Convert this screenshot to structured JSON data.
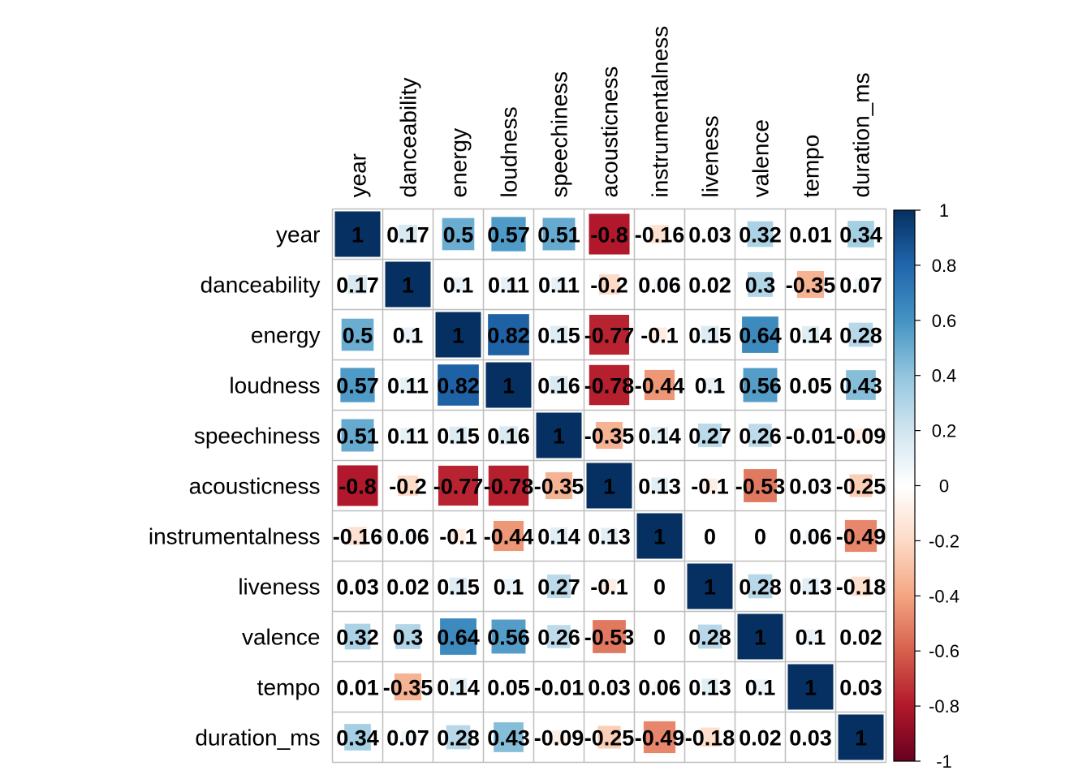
{
  "chart_data": {
    "type": "heatmap",
    "variables": [
      "year",
      "danceability",
      "energy",
      "loudness",
      "speechiness",
      "acousticness",
      "instrumentalness",
      "liveness",
      "valence",
      "tempo",
      "duration_ms"
    ],
    "matrix": [
      [
        1,
        0.17,
        0.5,
        0.57,
        0.51,
        -0.8,
        -0.16,
        0.03,
        0.32,
        0.01,
        0.34
      ],
      [
        0.17,
        1,
        0.1,
        0.11,
        0.11,
        -0.2,
        0.06,
        0.02,
        0.3,
        -0.35,
        0.07
      ],
      [
        0.5,
        0.1,
        1,
        0.82,
        0.15,
        -0.77,
        -0.1,
        0.15,
        0.64,
        0.14,
        0.28
      ],
      [
        0.57,
        0.11,
        0.82,
        1,
        0.16,
        -0.78,
        -0.44,
        0.1,
        0.56,
        0.05,
        0.43
      ],
      [
        0.51,
        0.11,
        0.15,
        0.16,
        1,
        -0.35,
        0.14,
        0.27,
        0.26,
        -0.01,
        -0.09
      ],
      [
        -0.8,
        -0.2,
        -0.77,
        -0.78,
        -0.35,
        1,
        0.13,
        -0.1,
        -0.53,
        0.03,
        -0.25
      ],
      [
        -0.16,
        0.06,
        -0.1,
        -0.44,
        0.14,
        0.13,
        1,
        0,
        0,
        0.06,
        -0.49
      ],
      [
        0.03,
        0.02,
        0.15,
        0.1,
        0.27,
        -0.1,
        0,
        1,
        0.28,
        0.13,
        -0.18
      ],
      [
        0.32,
        0.3,
        0.64,
        0.56,
        0.26,
        -0.53,
        0,
        0.28,
        1,
        0.1,
        0.02
      ],
      [
        0.01,
        -0.35,
        0.14,
        0.05,
        -0.01,
        0.03,
        0.06,
        0.13,
        0.1,
        1,
        0.03
      ],
      [
        0.34,
        0.07,
        0.28,
        0.43,
        -0.09,
        -0.25,
        -0.49,
        -0.18,
        0.02,
        0.03,
        1
      ]
    ],
    "colorbar": {
      "range": [
        -1,
        1
      ],
      "ticks": [
        "1",
        "0.8",
        "0.6",
        "0.4",
        "0.2",
        "0",
        "-0.2",
        "-0.4",
        "-0.6",
        "-0.8",
        "-1"
      ],
      "colors": [
        "#67001F",
        "#B2182B",
        "#D6604D",
        "#F4A582",
        "#FDDBC7",
        "#FFFFFF",
        "#D1E5F0",
        "#92C5DE",
        "#4393C3",
        "#2166AC",
        "#053061"
      ]
    },
    "title": "",
    "grid": true
  }
}
